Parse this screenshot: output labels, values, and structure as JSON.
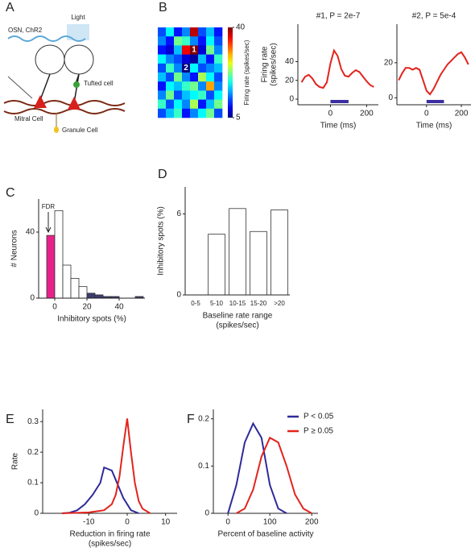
{
  "diagram": {
    "panel": "A",
    "light": "Light",
    "osn": "OSN, ChR2",
    "tufted": "Tufted cell",
    "mitral": "Mitral Cell",
    "granule": "Granule Cell"
  },
  "chart_data": [
    {
      "type": "heatmap",
      "panel": "B",
      "colormap": "jet",
      "clim": [
        5,
        40
      ],
      "cticks": [
        5,
        40
      ],
      "clabel": "Firing rate (spikes/sec)",
      "values": [
        [
          12,
          18,
          10,
          14,
          38,
          12,
          16,
          10
        ],
        [
          14,
          10,
          22,
          20,
          14,
          10,
          18,
          12
        ],
        [
          10,
          8,
          16,
          36,
          40,
          8,
          22,
          14
        ],
        [
          18,
          14,
          12,
          8,
          6,
          16,
          10,
          20
        ],
        [
          12,
          20,
          14,
          5,
          18,
          12,
          14,
          16
        ],
        [
          16,
          12,
          22,
          14,
          10,
          24,
          18,
          12
        ],
        [
          10,
          18,
          16,
          20,
          22,
          14,
          30,
          14
        ],
        [
          14,
          22,
          12,
          16,
          18,
          20,
          12,
          18
        ],
        [
          20,
          12,
          18,
          14,
          24,
          10,
          16,
          22
        ],
        [
          12,
          16,
          20,
          10,
          14,
          18,
          22,
          12
        ]
      ],
      "cell_labels": [
        [
          null,
          null,
          null,
          null,
          null,
          null,
          null,
          null
        ],
        [
          null,
          null,
          null,
          null,
          null,
          null,
          null,
          null
        ],
        [
          null,
          null,
          null,
          null,
          "1",
          null,
          null,
          null
        ],
        [
          null,
          null,
          null,
          null,
          null,
          null,
          null,
          null
        ],
        [
          null,
          null,
          null,
          "2",
          null,
          null,
          null,
          null
        ],
        [
          null,
          null,
          null,
          null,
          null,
          null,
          null,
          null
        ],
        [
          null,
          null,
          null,
          null,
          null,
          null,
          null,
          null
        ],
        [
          null,
          null,
          null,
          null,
          null,
          null,
          null,
          null
        ],
        [
          null,
          null,
          null,
          null,
          null,
          null,
          null,
          null
        ],
        [
          null,
          null,
          null,
          null,
          null,
          null,
          null,
          null
        ]
      ]
    },
    {
      "type": "line",
      "title": "#1, P = 2e-7",
      "ylabel": [
        "Firing rate",
        "(spikes/sec)"
      ],
      "xlabel": "Time (ms)",
      "x": [
        -160,
        -140,
        -120,
        -100,
        -80,
        -60,
        -40,
        -20,
        0,
        20,
        40,
        60,
        80,
        100,
        120,
        140,
        160,
        180,
        200,
        220,
        240
      ],
      "series": [
        {
          "color": "#e3231c",
          "values": [
            18,
            24,
            26,
            22,
            16,
            13,
            12,
            18,
            38,
            52,
            46,
            32,
            25,
            24,
            28,
            31,
            29,
            24,
            19,
            15,
            13
          ]
        }
      ],
      "stimulus": {
        "x": [
          0,
          100
        ],
        "color": "#3a2ea0"
      },
      "xlim": [
        -180,
        265
      ],
      "ylim": [
        -6,
        80
      ],
      "xticks": [
        0,
        200
      ],
      "yticks": [
        0,
        20,
        40
      ]
    },
    {
      "type": "line",
      "title": "#2, P = 5e-4",
      "xlabel": "Time (ms)",
      "x": [
        -160,
        -140,
        -120,
        -100,
        -80,
        -60,
        -40,
        -20,
        0,
        20,
        40,
        60,
        80,
        100,
        120,
        140,
        160,
        180,
        200,
        220,
        240
      ],
      "series": [
        {
          "color": "#e3231c",
          "values": [
            10,
            14,
            17,
            17,
            16,
            17,
            16,
            10,
            4,
            2,
            5,
            9,
            13,
            16,
            19,
            21,
            23,
            25,
            26,
            23,
            19
          ]
        }
      ],
      "stimulus": {
        "x": [
          0,
          100
        ],
        "color": "#3a2ea0"
      },
      "xlim": [
        -170,
        255
      ],
      "ylim": [
        -4,
        42
      ],
      "xticks": [
        0,
        200
      ],
      "yticks": [
        0,
        20
      ]
    },
    {
      "type": "histogram",
      "panel": "C",
      "ylabel": "# Neurons",
      "xlabel": "Inhibitory spots (%)",
      "annotation": "FDR",
      "bins": [
        -5,
        0,
        5,
        10,
        15,
        20,
        25,
        30,
        35,
        40,
        45,
        50,
        55
      ],
      "values": [
        38,
        53,
        20,
        12,
        7,
        3,
        2,
        1,
        1,
        0,
        0,
        1
      ],
      "colors": [
        "#e8218a",
        "#ffffff",
        "#ffffff",
        "#ffffff",
        "#ffffff",
        "#3b3b6e",
        "#3b3b6e",
        "#3b3b6e",
        "#3b3b6e",
        "#3b3b6e",
        "#3b3b6e",
        "#3b3b6e"
      ],
      "xlim": [
        -10,
        56
      ],
      "ylim": [
        0,
        60
      ],
      "xticks": [
        0,
        20,
        40
      ],
      "yticks": [
        0,
        40
      ]
    },
    {
      "type": "bar",
      "panel": "D",
      "ylabel": "Inhibitory spots (%)",
      "xlabel": [
        "Baseline rate range",
        "(spikes/sec)"
      ],
      "categories": [
        "0-5",
        "5-10",
        "10-15",
        "15-20",
        ">20"
      ],
      "values": [
        0,
        4.5,
        6.4,
        4.7,
        6.3
      ],
      "color": "#ffffff",
      "ylim": [
        0,
        8
      ],
      "yticks": [
        0,
        6
      ]
    },
    {
      "type": "line",
      "panel": "E",
      "ylabel": "Rate",
      "xlabel": [
        "Reduction in firing rate",
        "(spikes/sec)"
      ],
      "series": [
        {
          "color": "#2e2a9a",
          "x": [
            -17,
            -15,
            -13,
            -11,
            -9,
            -7,
            -6,
            -5,
            -4,
            -3,
            -1,
            1,
            3
          ],
          "values": [
            0,
            0.002,
            0.01,
            0.03,
            0.06,
            0.1,
            0.15,
            0.145,
            0.14,
            0.11,
            0.05,
            0.01,
            0
          ]
        },
        {
          "color": "#e3231c",
          "x": [
            -17,
            -10,
            -6,
            -4,
            -3,
            -2,
            -1,
            0,
            1,
            2,
            3,
            4,
            6
          ],
          "values": [
            0,
            0.003,
            0.01,
            0.03,
            0.06,
            0.12,
            0.22,
            0.31,
            0.2,
            0.1,
            0.04,
            0.015,
            0
          ]
        }
      ],
      "xlim": [
        -22,
        13
      ],
      "ylim": [
        0,
        0.34
      ],
      "xticks": [
        -10,
        0,
        10
      ],
      "yticks": [
        0,
        0.1,
        0.2,
        0.3
      ]
    },
    {
      "type": "line",
      "panel": "F",
      "xlabel": "Percent of baseline activity",
      "legend": "upper right",
      "series": [
        {
          "name": "P < 0.05",
          "color": "#2e2a9a",
          "x": [
            0,
            20,
            40,
            60,
            80,
            100,
            120,
            140
          ],
          "values": [
            0,
            0.06,
            0.15,
            0.19,
            0.16,
            0.06,
            0.01,
            0
          ]
        },
        {
          "name": "P ≥ 0.05",
          "color": "#e3231c",
          "x": [
            20,
            40,
            60,
            80,
            100,
            120,
            140,
            160,
            180,
            200
          ],
          "values": [
            0,
            0.01,
            0.05,
            0.12,
            0.16,
            0.15,
            0.1,
            0.04,
            0.01,
            0
          ]
        }
      ],
      "xlim": [
        -35,
        215
      ],
      "ylim": [
        0,
        0.22
      ],
      "xticks": [
        0,
        100,
        200
      ],
      "yticks": [
        0,
        0.1,
        0.2
      ]
    }
  ]
}
